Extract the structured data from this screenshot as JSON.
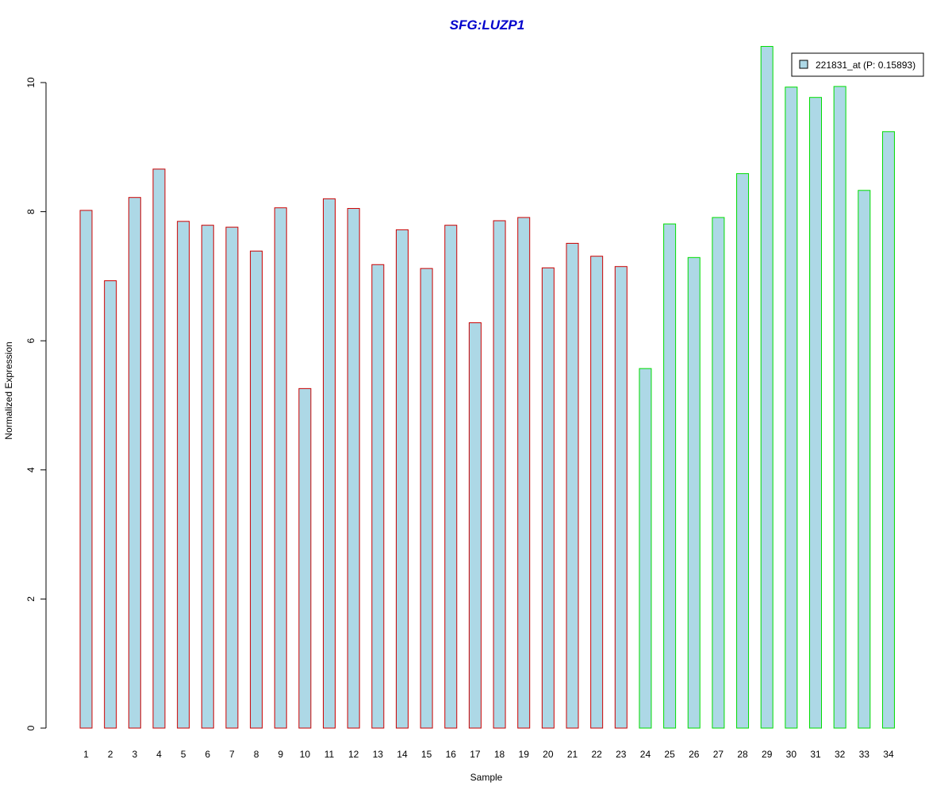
{
  "chart_data": {
    "type": "bar",
    "title": "SFG:LUZP1",
    "title_color": "#0000CC",
    "xlabel": "Sample",
    "ylabel": "Normalized Expression",
    "ylim": [
      0,
      10.5
    ],
    "yticks": [
      0,
      2,
      4,
      6,
      8,
      10
    ],
    "grid": false,
    "legend_position": "top-right",
    "categories": [
      "1",
      "2",
      "3",
      "4",
      "5",
      "6",
      "7",
      "8",
      "9",
      "10",
      "11",
      "12",
      "13",
      "14",
      "15",
      "16",
      "17",
      "18",
      "19",
      "20",
      "21",
      "22",
      "23",
      "24",
      "25",
      "26",
      "27",
      "28",
      "29",
      "30",
      "31",
      "32",
      "33",
      "34"
    ],
    "series": [
      {
        "name": "221831_at (P: 0.15893)",
        "fill": "#ADD8E6",
        "values": [
          8.02,
          6.93,
          8.22,
          8.66,
          7.85,
          7.79,
          7.76,
          7.39,
          8.06,
          5.26,
          8.2,
          8.05,
          7.18,
          7.72,
          7.12,
          7.79,
          6.28,
          7.86,
          7.91,
          7.13,
          7.51,
          7.31,
          7.15,
          5.57,
          7.81,
          7.29,
          7.91,
          8.59,
          10.56,
          9.93,
          9.77,
          9.94,
          8.33,
          9.24
        ]
      }
    ],
    "group_border_colors": [
      "#CC0000",
      "#CC0000",
      "#CC0000",
      "#CC0000",
      "#CC0000",
      "#CC0000",
      "#CC0000",
      "#CC0000",
      "#CC0000",
      "#CC0000",
      "#CC0000",
      "#CC0000",
      "#CC0000",
      "#CC0000",
      "#CC0000",
      "#CC0000",
      "#CC0000",
      "#CC0000",
      "#CC0000",
      "#CC0000",
      "#CC0000",
      "#CC0000",
      "#CC0000",
      "#00DD00",
      "#00DD00",
      "#00DD00",
      "#00DD00",
      "#00DD00",
      "#00DD00",
      "#00DD00",
      "#00DD00",
      "#00DD00",
      "#00DD00",
      "#00DD00"
    ]
  }
}
